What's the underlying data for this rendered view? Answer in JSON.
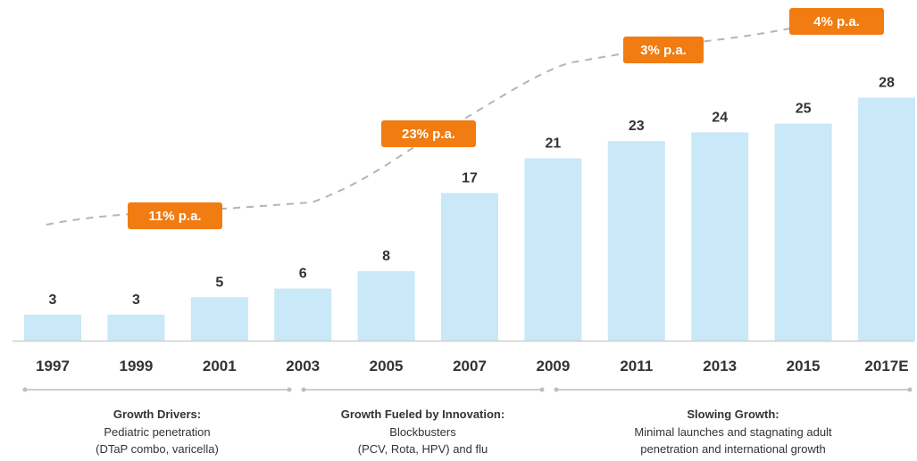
{
  "colors": {
    "bar": "#c9e8f8",
    "badge": "#f07c12",
    "trend": "#b5b5b5",
    "bracket": "#bdbdbd",
    "axis": "#cfcfcf"
  },
  "chart_data": {
    "type": "bar",
    "categories": [
      "1997",
      "1999",
      "2001",
      "2003",
      "2005",
      "2007",
      "2009",
      "2011",
      "2013",
      "2015",
      "2017E"
    ],
    "values": [
      3,
      3,
      5,
      6,
      8,
      17,
      21,
      23,
      24,
      25,
      28
    ],
    "ylim": [
      0,
      30
    ],
    "grid": false,
    "legend": "none",
    "growth_rates": [
      {
        "label": "11% p.a.",
        "from": "1997",
        "to": "2003"
      },
      {
        "label": "23% p.a.",
        "from": "2003",
        "to": "2009"
      },
      {
        "label": "3% p.a.",
        "from": "2009",
        "to": "2013"
      },
      {
        "label": "4% p.a.",
        "from": "2013",
        "to": "2017E"
      }
    ],
    "phases": [
      {
        "title": "Growth Drivers:",
        "lines": [
          "Pediatric penetration",
          "(DTaP combo, varicella)"
        ],
        "from": "1997",
        "to": "2003"
      },
      {
        "title": "Growth Fueled by Innovation:",
        "lines": [
          "Blockbusters",
          "(PCV, Rota, HPV) and flu"
        ],
        "from": "2003",
        "to": "2009"
      },
      {
        "title": "Slowing Growth:",
        "lines": [
          "Minimal launches and stagnating adult",
          "penetration and international growth"
        ],
        "from": "2009",
        "to": "2017E"
      }
    ]
  }
}
